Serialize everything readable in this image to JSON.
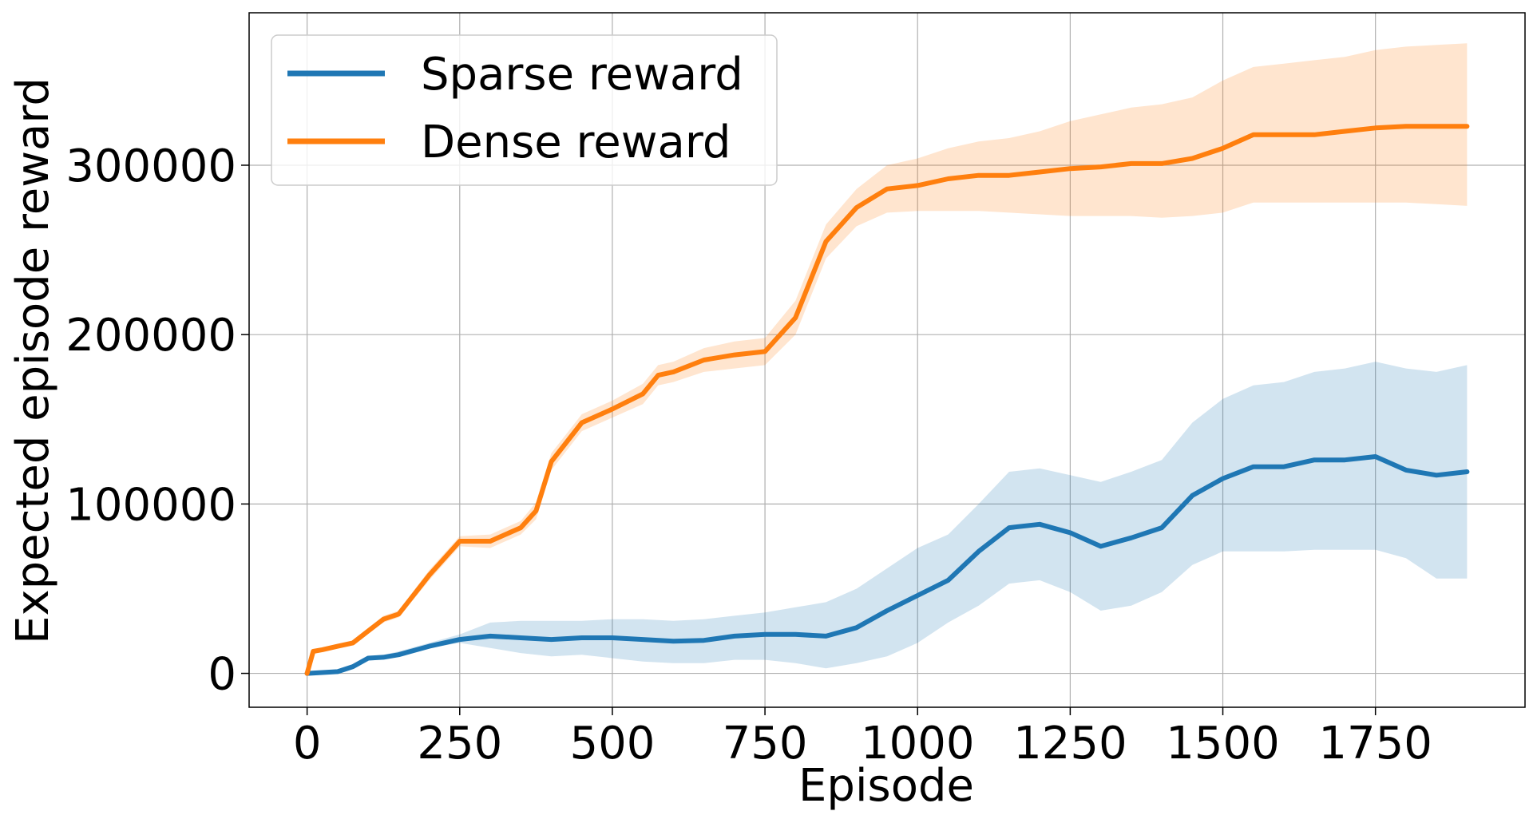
{
  "chart_data": {
    "type": "line",
    "title": "",
    "xlabel": "Episode",
    "ylabel": "Expected episode reward",
    "xlim": [
      -95,
      1995
    ],
    "ylim": [
      -20000,
      390000
    ],
    "xticks": [
      0,
      250,
      500,
      750,
      1000,
      1250,
      1500,
      1750
    ],
    "xtick_labels": [
      "0",
      "250",
      "500",
      "750",
      "1000",
      "1250",
      "1500",
      "1750"
    ],
    "yticks": [
      0,
      100000,
      200000,
      300000
    ],
    "ytick_labels": [
      "0",
      "100000",
      "200000",
      "300000"
    ],
    "grid": true,
    "legend_position": "upper-left",
    "series": [
      {
        "name": "Sparse reward",
        "color": "#1f77b4",
        "band_color": "#1f77b4",
        "x": [
          0,
          50,
          75,
          100,
          125,
          150,
          200,
          250,
          300,
          350,
          400,
          450,
          500,
          550,
          600,
          650,
          700,
          750,
          800,
          850,
          900,
          950,
          1000,
          1050,
          1100,
          1150,
          1200,
          1250,
          1300,
          1350,
          1400,
          1450,
          1500,
          1550,
          1600,
          1650,
          1700,
          1750,
          1800,
          1850,
          1900
        ],
        "values": [
          0,
          1000,
          4000,
          9000,
          9500,
          11000,
          16000,
          20000,
          22000,
          21000,
          20000,
          21000,
          21000,
          20000,
          19000,
          19500,
          22000,
          23000,
          23000,
          22000,
          27000,
          37000,
          46000,
          55000,
          72000,
          86000,
          88000,
          83000,
          75000,
          80000,
          86000,
          105000,
          115000,
          122000,
          122000,
          126000,
          126000,
          128000,
          120000,
          117000,
          119000
        ],
        "lower": [
          0,
          800,
          3000,
          8000,
          8500,
          10000,
          15000,
          18000,
          15000,
          12000,
          10000,
          11000,
          9000,
          7000,
          6000,
          6000,
          8000,
          8000,
          6000,
          3000,
          6000,
          10000,
          18000,
          30000,
          40000,
          53000,
          55000,
          48000,
          37000,
          40000,
          48000,
          64000,
          72000,
          72000,
          72000,
          73000,
          73000,
          73000,
          68000,
          56000,
          56000
        ],
        "upper": [
          0,
          1200,
          5000,
          10000,
          11000,
          13000,
          18000,
          23000,
          30000,
          31000,
          31000,
          31000,
          32000,
          32000,
          31000,
          32000,
          34000,
          36000,
          39000,
          42000,
          50000,
          62000,
          74000,
          82000,
          100000,
          119000,
          121000,
          117000,
          113000,
          119000,
          126000,
          148000,
          162000,
          170000,
          172000,
          178000,
          180000,
          184000,
          180000,
          178000,
          182000
        ]
      },
      {
        "name": "Dense reward",
        "color": "#ff7f0e",
        "band_color": "#ff7f0e",
        "x": [
          0,
          10,
          25,
          50,
          75,
          100,
          125,
          150,
          200,
          250,
          300,
          350,
          375,
          400,
          450,
          500,
          550,
          575,
          600,
          650,
          700,
          750,
          800,
          850,
          900,
          950,
          1000,
          1050,
          1100,
          1150,
          1200,
          1250,
          1300,
          1350,
          1400,
          1450,
          1500,
          1550,
          1600,
          1650,
          1700,
          1750,
          1800,
          1850,
          1900
        ],
        "values": [
          0,
          13000,
          14000,
          16000,
          18000,
          25000,
          32000,
          35000,
          58000,
          78000,
          78000,
          86000,
          96000,
          125000,
          148000,
          156000,
          165000,
          176000,
          178000,
          185000,
          188000,
          190000,
          210000,
          255000,
          275000,
          286000,
          288000,
          292000,
          294000,
          294000,
          296000,
          298000,
          299000,
          301000,
          301000,
          304000,
          310000,
          318000,
          318000,
          318000,
          320000,
          322000,
          323000,
          323000,
          323000
        ],
        "lower": [
          0,
          12000,
          13000,
          15000,
          17000,
          24000,
          30000,
          33000,
          55000,
          75000,
          74000,
          82000,
          91000,
          120000,
          143000,
          151000,
          159000,
          170000,
          172000,
          178000,
          180000,
          182000,
          200000,
          245000,
          264000,
          272000,
          273000,
          273000,
          273000,
          272000,
          271000,
          270000,
          270000,
          270000,
          269000,
          270000,
          272000,
          278000,
          278000,
          278000,
          278000,
          278000,
          278000,
          277000,
          276000
        ],
        "upper": [
          0,
          14000,
          15000,
          17000,
          19000,
          26000,
          34000,
          37000,
          61000,
          81000,
          82000,
          90000,
          101000,
          130000,
          153000,
          161000,
          171000,
          182000,
          184000,
          192000,
          196000,
          198000,
          220000,
          265000,
          286000,
          300000,
          304000,
          310000,
          314000,
          316000,
          320000,
          326000,
          330000,
          334000,
          336000,
          340000,
          350000,
          358000,
          360000,
          362000,
          364000,
          368000,
          370000,
          371000,
          372000
        ]
      }
    ]
  }
}
